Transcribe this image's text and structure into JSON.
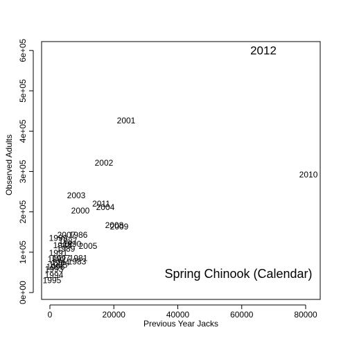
{
  "chart_data": {
    "type": "scatter",
    "title": "2012",
    "title_color": "#0000cc",
    "annotation": "Spring Chinook (Calendar)",
    "x_label": "Previous Year Jacks",
    "y_label": "Observed Adults",
    "labels": [
      "2001",
      "2002",
      "2010",
      "2003",
      "2011",
      "2004",
      "2000",
      "2008",
      "2009",
      "1986",
      "2007",
      "1999",
      "1987",
      "1988",
      "1990",
      "1989",
      "2005",
      "1991",
      "1992",
      "1981",
      "1997",
      "1983",
      "1984",
      "1985",
      "1996",
      "1993",
      "1994",
      "1995"
    ],
    "x": [
      23850,
      16900,
      80870,
      8240,
      16040,
      17340,
      9540,
      20160,
      21680,
      8890,
      5200,
      2600,
      5640,
      3900,
      6940,
      4990,
      11920,
      2600,
      2170,
      8890,
      3470,
      8460,
      3250,
      2600,
      1730,
      1300,
      1300,
      650
    ],
    "values": [
      424600,
      319700,
      290500,
      239000,
      218300,
      209700,
      201100,
      165000,
      161600,
      141000,
      141000,
      134000,
      125500,
      115200,
      118600,
      106600,
      113500,
      96300,
      80800,
      84200,
      84200,
      75600,
      72200,
      67000,
      61900,
      56700,
      41300,
      29200
    ],
    "xlim": [
      -2600,
      84550
    ],
    "ylim": [
      -17000,
      622000
    ],
    "xticks": [
      0,
      20000,
      40000,
      60000,
      80000
    ],
    "yticks": [
      {
        "value": 0,
        "label": "0e+00"
      },
      {
        "value": 100000,
        "label": "1e+05"
      },
      {
        "value": 200000,
        "label": "2e+05"
      },
      {
        "value": 300000,
        "label": "3e+05"
      },
      {
        "value": 400000,
        "label": "4e+05"
      },
      {
        "value": 500000,
        "label": "5e+05"
      },
      {
        "value": 600000,
        "label": "6e+05"
      }
    ]
  }
}
